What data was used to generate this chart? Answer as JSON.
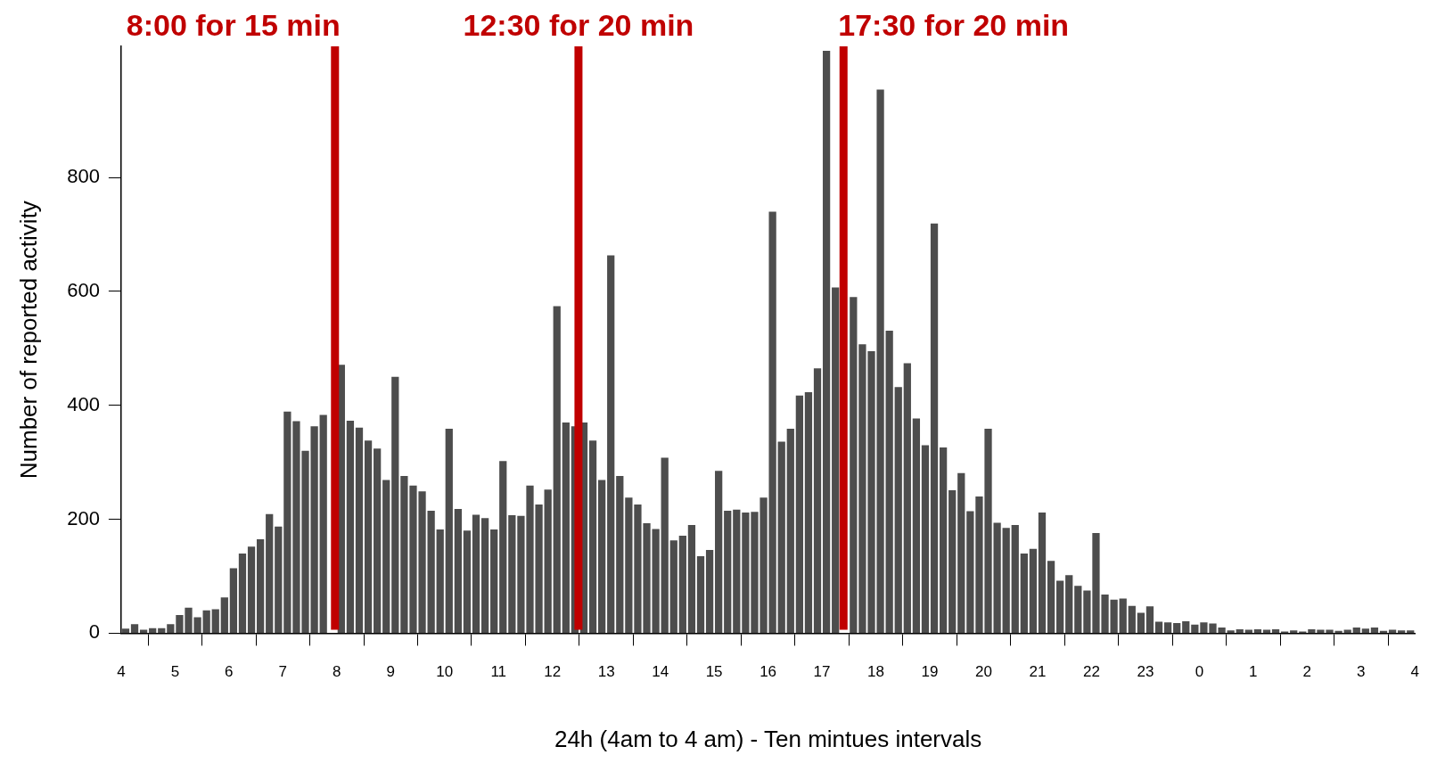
{
  "chart_data": {
    "type": "histogram",
    "xlabel": "24h (4am to 4 am) - Ten mintues intervals",
    "ylabel": "Number of reported activity",
    "bins": [
      "--01-01T04:00",
      "--01-01T04:10",
      "--01-01T04:20",
      "--01-01T04:30",
      "--01-01T04:40",
      "--01-01T04:50",
      "--01-01T05:00",
      "--01-01T05:10",
      "--01-01T05:20",
      "--01-01T05:30",
      "--01-01T05:40",
      "--01-01T05:50",
      "--01-01T06:00",
      "--01-01T06:10",
      "--01-01T06:20",
      "--01-01T06:30",
      "--01-01T06:40",
      "--01-01T06:50",
      "--01-01T07:00",
      "--01-01T07:10",
      "--01-01T07:20",
      "--01-01T07:30",
      "--01-01T07:40",
      "--01-01T07:50",
      "--01-01T08:00",
      "--01-01T08:10",
      "--01-01T08:20",
      "--01-01T08:30",
      "--01-01T08:40",
      "--01-01T08:50",
      "--01-01T09:00",
      "--01-01T09:10",
      "--01-01T09:20",
      "--01-01T09:30",
      "--01-01T09:40",
      "--01-01T09:50",
      "--01-01T10:00",
      "--01-01T10:10",
      "--01-01T10:20",
      "--01-01T10:30",
      "--01-01T10:40",
      "--01-01T10:50",
      "--01-01T11:00",
      "--01-01T11:10",
      "--01-01T11:20",
      "--01-01T11:30",
      "--01-01T11:40",
      "--01-01T11:50",
      "--01-01T12:00",
      "--01-01T12:10",
      "--01-01T12:20",
      "--01-01T12:30",
      "--01-01T12:40",
      "--01-01T12:50",
      "--01-01T13:00",
      "--01-01T13:10",
      "--01-01T13:20",
      "--01-01T13:30",
      "--01-01T13:40",
      "--01-01T13:50",
      "--01-01T14:00",
      "--01-01T14:10",
      "--01-01T14:20",
      "--01-01T14:30",
      "--01-01T14:40",
      "--01-01T14:50",
      "--01-01T15:00",
      "--01-01T15:10",
      "--01-01T15:20",
      "--01-01T15:30",
      "--01-01T15:40",
      "--01-01T15:50",
      "--01-01T16:00",
      "--01-01T16:10",
      "--01-01T16:20",
      "--01-01T16:30",
      "--01-01T16:40",
      "--01-01T16:50",
      "--01-01T17:00",
      "--01-01T17:10",
      "--01-01T17:20",
      "--01-01T17:30",
      "--01-01T17:40",
      "--01-01T17:50",
      "--01-01T18:00",
      "--01-01T18:10",
      "--01-01T18:20",
      "--01-01T18:30",
      "--01-01T18:40",
      "--01-01T18:50",
      "--01-01T19:00",
      "--01-01T19:10",
      "--01-01T19:20",
      "--01-01T19:30",
      "--01-01T19:40",
      "--01-01T19:50",
      "--01-01T20:00",
      "--01-01T20:10",
      "--01-01T20:20",
      "--01-01T20:30",
      "--01-01T20:40",
      "--01-01T20:50",
      "--01-01T21:00",
      "--01-01T21:10",
      "--01-01T21:20",
      "--01-01T21:30",
      "--01-01T21:40",
      "--01-01T21:50",
      "--01-01T22:00",
      "--01-01T22:10",
      "--01-01T22:20",
      "--01-01T22:30",
      "--01-01T22:40",
      "--01-01T22:50",
      "--01-01T23:00",
      "--01-01T23:10",
      "--01-01T23:20",
      "--01-01T23:30",
      "--01-01T23:40",
      "--01-01T23:50",
      "--01-02T00:00",
      "--01-02T00:10",
      "--01-02T00:20",
      "--01-02T00:30",
      "--01-02T00:40",
      "--01-02T00:50",
      "--01-02T01:00",
      "--01-02T01:10",
      "--01-02T01:20",
      "--01-02T01:30",
      "--01-02T01:40",
      "--01-02T01:50",
      "--01-02T02:00",
      "--01-02T02:10",
      "--01-02T02:20",
      "--01-02T02:30",
      "--01-02T02:40",
      "--01-02T02:50",
      "--01-02T03:00",
      "--01-02T03:10",
      "--01-02T03:20",
      "--01-02T03:30",
      "--01-02T03:40",
      "--01-02T03:50",
      "--01-02T04:00"
    ],
    "values": [
      8,
      16,
      6,
      9,
      9,
      16,
      32,
      45,
      28,
      40,
      42,
      63,
      114,
      140,
      152,
      165,
      209,
      187,
      389,
      372,
      320,
      363,
      383,
      null,
      471,
      373,
      361,
      338,
      324,
      269,
      450,
      276,
      259,
      249,
      215,
      182,
      359,
      218,
      180,
      208,
      202,
      182,
      302,
      207,
      206,
      259,
      226,
      252,
      574,
      370,
      363,
      370,
      338,
      269,
      663,
      276,
      238,
      226,
      193,
      183,
      308,
      163,
      171,
      190,
      135,
      146,
      285,
      215,
      217,
      212,
      213,
      238,
      740,
      336,
      359,
      417,
      423,
      465,
      1022,
      607,
      null,
      590,
      507,
      495,
      954,
      531,
      432,
      474,
      377,
      330,
      719,
      326,
      251,
      281,
      214,
      240,
      359,
      194,
      185,
      190,
      140,
      148,
      212,
      127,
      92,
      102,
      83,
      75,
      176,
      68,
      59,
      61,
      48,
      36,
      47,
      20,
      19,
      18,
      21,
      15,
      19,
      17,
      10,
      5,
      7,
      6,
      7,
      6,
      7,
      3,
      5,
      3,
      7,
      6,
      6,
      4,
      6,
      10,
      8,
      10,
      4,
      6,
      5,
      5
    ],
    "color": "#4d4d4d",
    "xlim": [
      "--01-01T04:00",
      "--01-02T04:00"
    ],
    "xticks": [
      {
        "value": "--01-01T04:00",
        "label": "4"
      },
      {
        "value": "--01-01T05:00",
        "label": "5"
      },
      {
        "value": "--01-01T06:00",
        "label": "6"
      },
      {
        "value": "--01-01T07:00",
        "label": "7"
      },
      {
        "value": "--01-01T08:00",
        "label": "8"
      },
      {
        "value": "--01-01T09:00",
        "label": "9"
      },
      {
        "value": "--01-01T10:00",
        "label": "10"
      },
      {
        "value": "--01-01T11:00",
        "label": "11"
      },
      {
        "value": "--01-01T12:00",
        "label": "12"
      },
      {
        "value": "--01-01T13:00",
        "label": "13"
      },
      {
        "value": "--01-01T14:00",
        "label": "14"
      },
      {
        "value": "--01-01T15:00",
        "label": "15"
      },
      {
        "value": "--01-01T16:00",
        "label": "16"
      },
      {
        "value": "--01-01T17:00",
        "label": "17"
      },
      {
        "value": "--01-01T18:00",
        "label": "18"
      },
      {
        "value": "--01-01T19:00",
        "label": "19"
      },
      {
        "value": "--01-01T20:00",
        "label": "20"
      },
      {
        "value": "--01-01T21:00",
        "label": "21"
      },
      {
        "value": "--01-01T22:00",
        "label": "22"
      },
      {
        "value": "--01-01T23:00",
        "label": "23"
      },
      {
        "value": "--01-02T00:00",
        "label": "0"
      },
      {
        "value": "--01-02T01:00",
        "label": "1"
      },
      {
        "value": "--01-02T02:00",
        "label": "2"
      },
      {
        "value": "--01-02T03:00",
        "label": "3"
      },
      {
        "value": "--01-02T04:00",
        "label": "4"
      }
    ],
    "ylim": [
      0,
      1030
    ],
    "yticks": [
      0,
      200,
      400,
      600,
      800
    ],
    "ref_lines": [
      {
        "axis": "x",
        "value": "--01-01T07:58",
        "label": "8:00 for 15 min",
        "color": "#c00000"
      },
      {
        "axis": "x",
        "value": "--01-01T12:29",
        "label": "12:30 for 20 min",
        "color": "#c00000"
      },
      {
        "axis": "x",
        "value": "--01-01T17:24",
        "label": "17:30 for 20 min",
        "color": "#c00000"
      }
    ]
  }
}
